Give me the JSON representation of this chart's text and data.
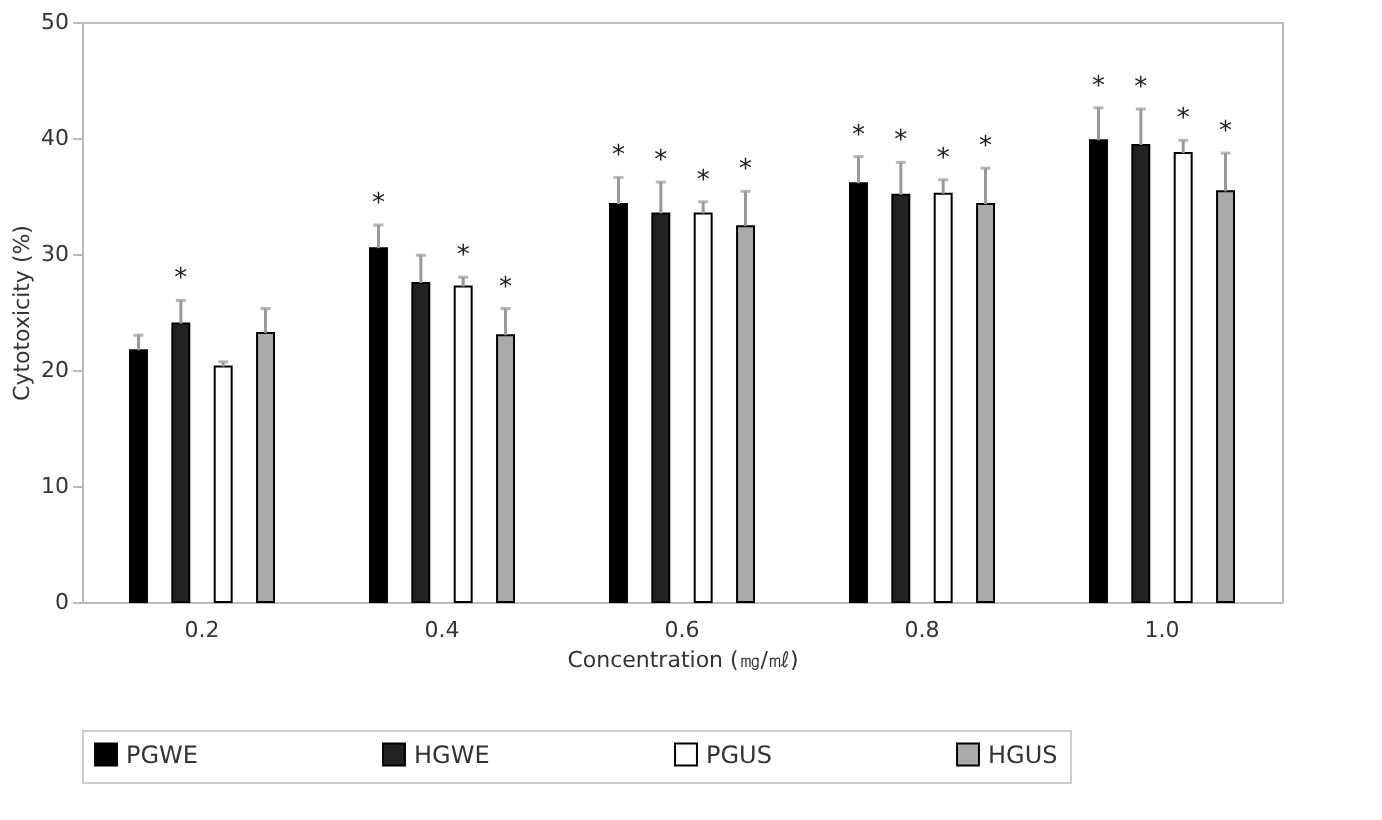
{
  "chart_data": {
    "type": "bar",
    "xlabel": "Concentration (㎎/㎖)",
    "ylabel": "Cytotoxicity (%)",
    "categories": [
      "0.2",
      "0.4",
      "0.6",
      "0.8",
      "1.0"
    ],
    "series": [
      {
        "name": "PGWE",
        "color": "#000000",
        "values": [
          21.7,
          30.5,
          34.3,
          36.1,
          39.8
        ],
        "errors": [
          [
            21.7,
            23.0
          ],
          [
            30.5,
            32.5
          ],
          [
            34.3,
            36.6
          ],
          [
            36.1,
            38.4
          ],
          [
            39.8,
            42.6
          ]
        ],
        "value_labels": [
          null,
          "*",
          "*",
          "*",
          "*"
        ]
      },
      {
        "name": "HGWE",
        "color": "#222222",
        "values": [
          24.0,
          27.5,
          33.5,
          35.1,
          39.4
        ],
        "errors": [
          [
            24.0,
            26.0
          ],
          [
            27.5,
            29.9
          ],
          [
            33.5,
            36.2
          ],
          [
            35.1,
            37.9
          ],
          [
            39.4,
            42.5
          ]
        ],
        "value_labels": [
          "*",
          null,
          "*",
          "*",
          "*"
        ]
      },
      {
        "name": "PGUS",
        "color": "#ffffff",
        "values": [
          20.3,
          27.2,
          33.5,
          35.2,
          38.7
        ],
        "errors": [
          [
            20.3,
            20.7
          ],
          [
            27.2,
            28.0
          ],
          [
            33.5,
            34.5
          ],
          [
            35.2,
            36.4
          ],
          [
            38.7,
            39.8
          ]
        ],
        "value_labels": [
          null,
          "*",
          "*",
          "*",
          "*"
        ]
      },
      {
        "name": "HGUS",
        "color": "#aaaaaa",
        "values": [
          23.2,
          23.0,
          32.4,
          34.3,
          35.4
        ],
        "errors": [
          [
            23.2,
            25.3
          ],
          [
            23.0,
            25.3
          ],
          [
            32.4,
            35.4
          ],
          [
            34.3,
            37.4
          ],
          [
            35.4,
            38.7
          ]
        ],
        "value_labels": [
          null,
          "*",
          "*",
          "*",
          "*"
        ]
      }
    ],
    "ylim": [
      0,
      50
    ],
    "yticks": [
      0,
      10,
      20,
      30,
      40,
      50
    ],
    "legend": "bottom"
  }
}
